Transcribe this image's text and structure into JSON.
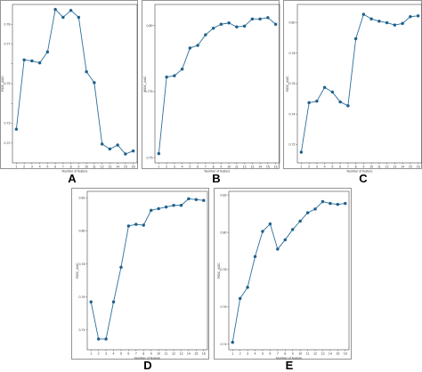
{
  "figure": {
    "style": {
      "line_color": "#2b6f9a",
      "marker_color": "#1f5f8b",
      "axis_color": "#222222",
      "frame_color": "#7a7a7a"
    },
    "chart_data": [
      {
        "type": "line",
        "panel_label": "A",
        "xlabel": "Number of feature",
        "ylabel": "ROC_AUC",
        "x": [
          1,
          2,
          3,
          4,
          5,
          6,
          7,
          8,
          9,
          10,
          11,
          12,
          13,
          14,
          15,
          16
        ],
        "values": [
          0.727,
          0.762,
          0.7615,
          0.7605,
          0.766,
          0.7875,
          0.7835,
          0.787,
          0.7835,
          0.756,
          0.7505,
          0.7195,
          0.717,
          0.719,
          0.7145,
          0.716
        ],
        "xlim": [
          0.5,
          16.5
        ],
        "ylim": [
          0.71,
          0.79
        ],
        "yticks": [
          0.72,
          0.73,
          0.74,
          0.75,
          0.76,
          0.77,
          0.78
        ],
        "ytick_labels": [
          "0.72",
          "0.73",
          "",
          "0.75",
          "",
          "0.77",
          "0.78"
        ],
        "yticks_visible": [
          0.72,
          0.75,
          0.78
        ],
        "xticks": [
          1,
          2,
          3,
          4,
          5,
          6,
          7,
          8,
          9,
          10,
          11,
          12,
          13,
          14,
          15,
          16
        ]
      },
      {
        "type": "line",
        "panel_label": "B",
        "xlabel": "Number of feature",
        "ylabel": "ROC_AUC",
        "x": [
          1,
          2,
          3,
          4,
          5,
          6,
          7,
          8,
          9,
          10,
          11,
          12,
          13,
          14,
          15,
          16
        ],
        "values": [
          0.7515,
          0.7805,
          0.781,
          0.7835,
          0.7915,
          0.7925,
          0.7965,
          0.799,
          0.8005,
          0.801,
          0.7995,
          0.7998,
          0.8025,
          0.8025,
          0.803,
          0.8005
        ],
        "xlim": [
          0.5,
          16.5
        ],
        "ylim": [
          0.748,
          0.808
        ],
        "yticks": [
          0.75,
          0.775,
          0.8
        ],
        "ytick_labels": [
          "0.75",
          "0.775",
          "0.80"
        ],
        "xticks": [
          1,
          2,
          3,
          4,
          5,
          6,
          7,
          8,
          9,
          10,
          11,
          12,
          13,
          14,
          15,
          16
        ]
      },
      {
        "type": "line",
        "panel_label": "C",
        "xlabel": "Number of feature",
        "ylabel": "ROC_AUC",
        "x": [
          1,
          2,
          3,
          4,
          5,
          6,
          7,
          8,
          9,
          10,
          11,
          12,
          13,
          14,
          15,
          16
        ],
        "values": [
          0.715,
          0.7475,
          0.7485,
          0.7575,
          0.7545,
          0.748,
          0.7455,
          0.7895,
          0.8055,
          0.8025,
          0.801,
          0.8,
          0.7985,
          0.7995,
          0.804,
          0.8045
        ],
        "xlim": [
          0.5,
          16.5
        ],
        "ylim": [
          0.708,
          0.812
        ],
        "yticks": [
          0.72,
          0.74,
          0.76,
          0.78,
          0.8
        ],
        "ytick_labels": [
          "0.72",
          "0.74",
          "0.76",
          "0.78",
          "0.80"
        ],
        "xticks": [
          1,
          2,
          3,
          4,
          5,
          6,
          7,
          8,
          9,
          10,
          11,
          12,
          13,
          14,
          15,
          16
        ]
      },
      {
        "type": "line",
        "panel_label": "D",
        "xlabel": "Number of feature",
        "ylabel": "ROC_AUC",
        "x": [
          1,
          2,
          3,
          4,
          5,
          6,
          7,
          8,
          9,
          10,
          11,
          12,
          13,
          14,
          15,
          16
        ],
        "values": [
          0.757,
          0.7345,
          0.7345,
          0.757,
          0.778,
          0.803,
          0.804,
          0.8035,
          0.8125,
          0.8135,
          0.8145,
          0.8155,
          0.8155,
          0.8195,
          0.819,
          0.8185
        ],
        "xlim": [
          0.5,
          16.5
        ],
        "ylim": [
          0.728,
          0.824
        ],
        "yticks": [
          0.74,
          0.76,
          0.78,
          0.8,
          0.82
        ],
        "ytick_labels": [
          "0.74",
          "0.76",
          "0.78",
          "0.80",
          "0.82"
        ],
        "xticks": [
          1,
          2,
          3,
          4,
          5,
          6,
          7,
          8,
          9,
          10,
          11,
          12,
          13,
          14,
          15,
          16
        ]
      },
      {
        "type": "line",
        "panel_label": "E",
        "xlabel": "Number of feature",
        "ylabel": "ROC_AUC",
        "x": [
          1,
          2,
          3,
          4,
          5,
          6,
          7,
          8,
          9,
          10,
          11,
          12,
          13,
          14,
          15,
          16
        ],
        "values": [
          0.741,
          0.7645,
          0.7705,
          0.787,
          0.8005,
          0.8045,
          0.791,
          0.796,
          0.8015,
          0.806,
          0.8105,
          0.8125,
          0.8165,
          0.8155,
          0.815,
          0.8155
        ],
        "xlim": [
          0.5,
          16.5
        ],
        "ylim": [
          0.737,
          0.822
        ],
        "yticks": [
          0.74,
          0.76,
          0.78,
          0.8,
          0.82
        ],
        "ytick_labels": [
          "0.74",
          "0.76",
          "0.78",
          "0.80",
          "0.82"
        ],
        "xticks": [
          1,
          2,
          3,
          4,
          5,
          6,
          7,
          8,
          9,
          10,
          11,
          12,
          13,
          14,
          15,
          16
        ]
      }
    ]
  }
}
